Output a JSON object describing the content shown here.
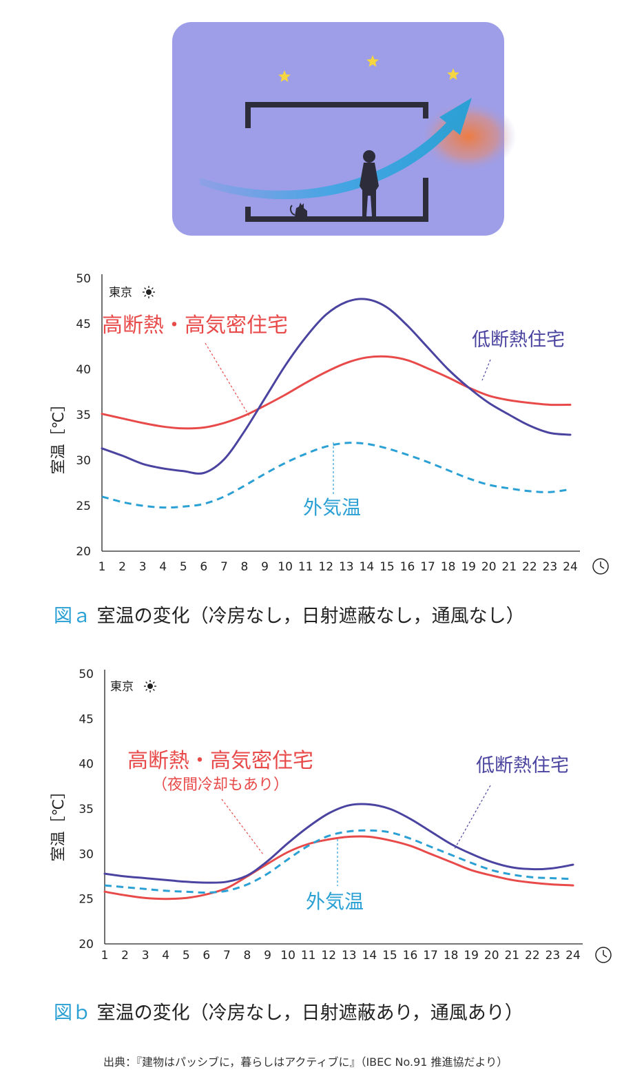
{
  "charts": [
    {
      "id": "a",
      "location": "東京",
      "ylabel": "室温［℃］",
      "annotations": {
        "high": "高断熱・高気密住宅",
        "high_sub": "",
        "low": "低断熱住宅",
        "outdoor": "外気温"
      },
      "caption_label": "図ａ",
      "caption_text": "室温の変化（冷房なし，日射遮蔽なし，通風なし）"
    },
    {
      "id": "b",
      "location": "東京",
      "ylabel": "室温［℃］",
      "annotations": {
        "high": "高断熱・高気密住宅",
        "high_sub": "（夜間冷却もあり）",
        "low": "低断熱住宅",
        "outdoor": "外気温"
      },
      "caption_label": "図ｂ",
      "caption_text": "室温の変化（冷房なし，日射遮蔽あり，通風あり）"
    }
  ],
  "source": "出典：『建物はパッシブに，暮らしはアクティブに』（IBEC No.91 推進協だより）",
  "colors": {
    "high": "#e84a4a",
    "low": "#4a44a0",
    "outdoor": "#2aa0d4",
    "illustration_bg": "#9e9ee8"
  },
  "chart_data": [
    {
      "type": "line",
      "title": "",
      "xlabel": "",
      "ylabel": "室温［℃］",
      "ylim": [
        20,
        50
      ],
      "yticks": [
        20,
        25,
        30,
        35,
        40,
        45,
        50
      ],
      "x": [
        1,
        2,
        3,
        4,
        5,
        6,
        7,
        8,
        9,
        10,
        11,
        12,
        13,
        14,
        15,
        16,
        17,
        18,
        19,
        20,
        21,
        22,
        23,
        24
      ],
      "series": [
        {
          "name": "高断熱・高気密住宅",
          "style": "solid",
          "values": [
            35.1,
            34.6,
            34.1,
            33.7,
            33.5,
            33.6,
            34.1,
            34.9,
            36.0,
            37.2,
            38.5,
            39.7,
            40.7,
            41.3,
            41.4,
            41.0,
            40.1,
            39.1,
            38.0,
            37.1,
            36.6,
            36.3,
            36.1,
            36.1
          ]
        },
        {
          "name": "低断熱住宅",
          "style": "solid",
          "values": [
            31.3,
            30.5,
            29.6,
            29.1,
            28.8,
            28.6,
            30.1,
            33.2,
            36.8,
            40.4,
            43.5,
            46.0,
            47.4,
            47.7,
            46.8,
            44.8,
            42.4,
            40.0,
            38.0,
            36.3,
            35.0,
            33.8,
            33.0,
            32.8
          ]
        },
        {
          "name": "外気温",
          "style": "dashed",
          "values": [
            26.0,
            25.4,
            25.0,
            24.8,
            24.9,
            25.2,
            26.0,
            27.2,
            28.5,
            29.7,
            30.7,
            31.5,
            31.9,
            31.8,
            31.3,
            30.6,
            29.8,
            28.9,
            28.0,
            27.3,
            26.9,
            26.6,
            26.5,
            26.8
          ]
        }
      ]
    },
    {
      "type": "line",
      "title": "",
      "xlabel": "",
      "ylabel": "室温［℃］",
      "ylim": [
        20,
        50
      ],
      "yticks": [
        20,
        25,
        30,
        35,
        40,
        45,
        50
      ],
      "x": [
        1,
        2,
        3,
        4,
        5,
        6,
        7,
        8,
        9,
        10,
        11,
        12,
        13,
        14,
        15,
        16,
        17,
        18,
        19,
        20,
        21,
        22,
        23,
        24
      ],
      "series": [
        {
          "name": "高断熱・高気密住宅",
          "style": "solid",
          "values": [
            25.8,
            25.4,
            25.1,
            25.0,
            25.1,
            25.5,
            26.2,
            27.5,
            28.9,
            30.2,
            31.1,
            31.6,
            31.9,
            31.9,
            31.5,
            30.9,
            30.0,
            29.1,
            28.2,
            27.6,
            27.1,
            26.8,
            26.6,
            26.5
          ]
        },
        {
          "name": "低断熱住宅",
          "style": "solid",
          "values": [
            27.8,
            27.5,
            27.3,
            27.1,
            26.9,
            26.8,
            26.9,
            27.6,
            29.2,
            31.2,
            33.0,
            34.5,
            35.4,
            35.5,
            35.0,
            33.9,
            32.5,
            31.1,
            30.0,
            29.1,
            28.5,
            28.3,
            28.4,
            28.8
          ]
        },
        {
          "name": "外気温",
          "style": "dashed",
          "values": [
            26.5,
            26.3,
            26.1,
            25.9,
            25.8,
            25.7,
            25.9,
            26.6,
            27.8,
            29.4,
            30.9,
            32.0,
            32.5,
            32.6,
            32.4,
            31.7,
            30.8,
            29.9,
            29.0,
            28.2,
            27.7,
            27.4,
            27.3,
            27.2
          ]
        }
      ]
    }
  ]
}
